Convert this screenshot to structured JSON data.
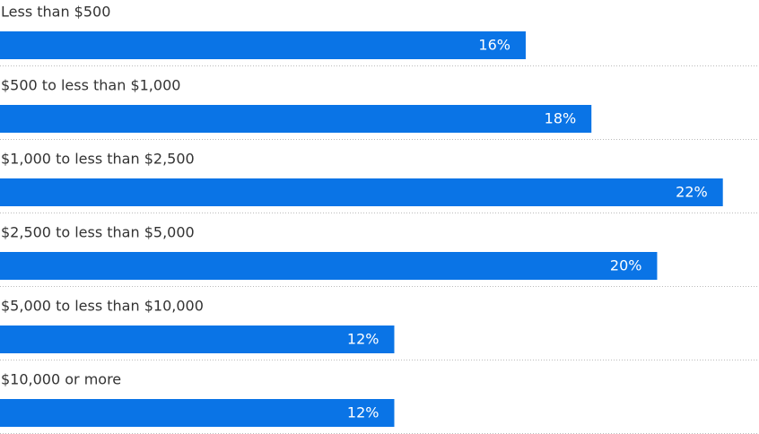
{
  "chart_data": {
    "type": "bar",
    "orientation": "horizontal",
    "categories": [
      "Less than $500",
      "$500 to less than $1,000",
      "$1,000 to less than $2,500",
      "$2,500 to less than $5,000",
      "$5,000 to less than $10,000",
      "$10,000 or more"
    ],
    "values": [
      16,
      18,
      22,
      20,
      12,
      12
    ],
    "value_labels": [
      "16%",
      "18%",
      "22%",
      "20%",
      "12%",
      "12%"
    ],
    "color": "#0a74e6",
    "xlim": [
      0,
      23.1
    ]
  }
}
